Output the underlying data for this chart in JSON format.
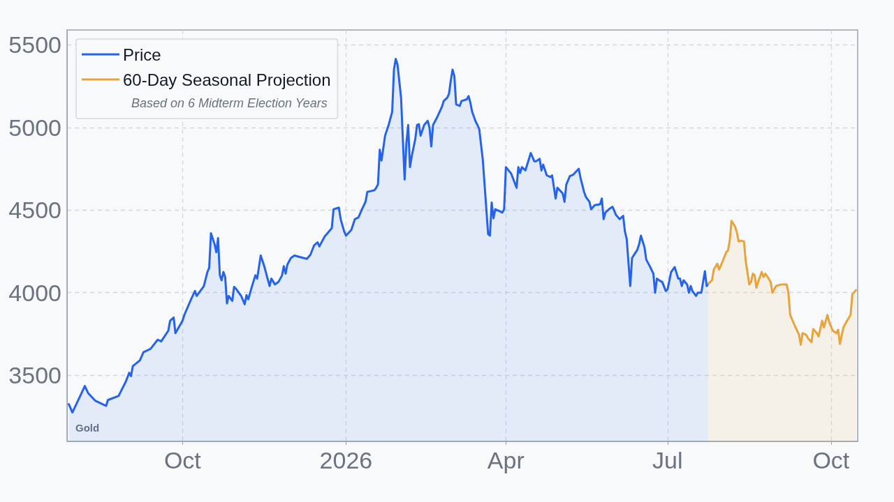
{
  "chart_data": {
    "type": "area",
    "legend": "top left",
    "grid": true,
    "marker": "none",
    "line_style": "solid",
    "xlim": [
      "2025-07-28",
      "2026-10-16"
    ],
    "xticks": [
      {
        "value": "2025-10-01",
        "label": "Oct"
      },
      {
        "value": "2026-01-01",
        "label": "2026"
      },
      {
        "value": "2026-04-01",
        "label": "Apr"
      },
      {
        "value": "2026-07-01",
        "label": "Jul"
      },
      {
        "value": "2026-10-01",
        "label": "Oct"
      }
    ],
    "ylim": [
      3100,
      5590
    ],
    "yticks": [
      3500,
      4000,
      4500,
      5000,
      5500
    ],
    "annotations": [
      "Based on 6 Midterm Election Years",
      "Gold"
    ],
    "series": [
      {
        "name": "Price",
        "color": "#2563eb",
        "x": [
          "2025-07-29",
          "2025-07-31",
          "2025-08-04",
          "2025-08-07",
          "2025-08-09",
          "2025-08-13",
          "2025-08-19",
          "2025-08-20",
          "2025-08-26",
          "2025-08-30",
          "2025-09-01",
          "2025-09-02",
          "2025-09-03",
          "2025-09-07",
          "2025-09-09",
          "2025-09-13",
          "2025-09-17",
          "2025-09-19",
          "2025-09-23",
          "2025-09-24",
          "2025-09-26",
          "2025-09-27",
          "2025-10-01",
          "2025-10-02",
          "2025-10-06",
          "2025-10-08",
          "2025-10-09",
          "2025-10-13",
          "2025-10-15",
          "2025-10-16",
          "2025-10-17",
          "2025-10-19",
          "2025-10-20",
          "2025-10-21",
          "2025-10-22",
          "2025-10-23",
          "2025-10-24",
          "2025-10-25",
          "2025-10-26",
          "2025-10-27",
          "2025-10-29",
          "2025-10-30",
          "2025-10-31",
          "2025-11-03",
          "2025-11-05",
          "2025-11-06",
          "2025-11-07",
          "2025-11-09",
          "2025-11-11",
          "2025-11-12",
          "2025-11-14",
          "2025-11-16",
          "2025-11-19",
          "2025-11-20",
          "2025-11-22",
          "2025-11-24",
          "2025-11-26",
          "2025-11-27",
          "2025-11-28",
          "2025-11-29",
          "2025-12-01",
          "2025-12-03",
          "2025-12-08",
          "2025-12-10",
          "2025-12-12",
          "2025-12-14",
          "2025-12-16",
          "2025-12-17",
          "2025-12-20",
          "2025-12-22",
          "2025-12-24",
          "2025-12-25",
          "2025-12-28",
          "2025-12-29",
          "2025-12-31",
          "2026-01-01",
          "2026-01-04",
          "2026-01-06",
          "2026-01-08",
          "2026-01-10",
          "2026-01-12",
          "2026-01-13",
          "2026-01-17",
          "2026-01-18",
          "2026-01-19",
          "2026-01-20",
          "2026-01-21",
          "2026-01-23",
          "2026-01-25",
          "2026-01-27",
          "2026-01-28",
          "2026-01-29",
          "2026-01-30",
          "2026-02-01",
          "2026-02-02",
          "2026-02-03",
          "2026-02-04",
          "2026-02-05",
          "2026-02-06",
          "2026-02-07",
          "2026-02-09",
          "2026-02-10",
          "2026-02-11",
          "2026-02-12",
          "2026-02-14",
          "2026-02-16",
          "2026-02-17",
          "2026-02-18",
          "2026-02-19",
          "2026-02-21",
          "2026-02-24",
          "2026-02-25",
          "2026-02-27",
          "2026-02-28",
          "2026-03-01",
          "2026-03-02",
          "2026-03-03",
          "2026-03-04",
          "2026-03-06",
          "2026-03-07",
          "2026-03-10",
          "2026-03-11",
          "2026-03-12",
          "2026-03-13",
          "2026-03-15",
          "2026-03-16",
          "2026-03-17",
          "2026-03-19",
          "2026-03-21",
          "2026-03-22",
          "2026-03-23",
          "2026-03-24",
          "2026-03-25",
          "2026-03-26",
          "2026-03-28",
          "2026-03-30",
          "2026-03-31",
          "2026-04-01",
          "2026-04-04",
          "2026-04-07",
          "2026-04-08",
          "2026-04-09",
          "2026-04-10",
          "2026-04-12",
          "2026-04-15",
          "2026-04-17",
          "2026-04-18",
          "2026-04-20",
          "2026-04-21",
          "2026-04-22",
          "2026-04-24",
          "2026-04-26",
          "2026-04-27",
          "2026-04-28",
          "2026-04-29",
          "2026-04-30",
          "2026-05-03",
          "2026-05-04",
          "2026-05-05",
          "2026-05-07",
          "2026-05-09",
          "2026-05-12",
          "2026-05-13",
          "2026-05-15",
          "2026-05-16",
          "2026-05-18",
          "2026-05-19",
          "2026-05-21",
          "2026-05-24",
          "2026-05-25",
          "2026-05-26",
          "2026-05-27",
          "2026-05-29",
          "2026-05-31",
          "2026-06-02",
          "2026-06-04",
          "2026-06-06",
          "2026-06-07",
          "2026-06-08",
          "2026-06-10",
          "2026-06-11",
          "2026-06-14",
          "2026-06-15",
          "2026-06-16",
          "2026-06-18",
          "2026-06-19",
          "2026-06-21",
          "2026-06-23",
          "2026-06-24",
          "2026-06-25",
          "2026-06-27",
          "2026-06-28",
          "2026-06-30",
          "2026-07-01",
          "2026-07-03",
          "2026-07-05",
          "2026-07-07",
          "2026-07-08",
          "2026-07-09",
          "2026-07-10",
          "2026-07-12",
          "2026-07-13",
          "2026-07-14",
          "2026-07-15",
          "2026-07-17",
          "2026-07-18",
          "2026-07-20",
          "2026-07-22",
          "2026-07-23",
          "2026-07-24"
        ],
        "values": [
          3325,
          3275,
          3365,
          3435,
          3390,
          3345,
          3315,
          3350,
          3375,
          3460,
          3515,
          3495,
          3555,
          3590,
          3640,
          3660,
          3715,
          3705,
          3770,
          3830,
          3850,
          3755,
          3830,
          3865,
          3965,
          4010,
          3980,
          4040,
          4125,
          4150,
          4360,
          4295,
          4245,
          4330,
          4105,
          4075,
          4125,
          4095,
          3935,
          3980,
          3950,
          4035,
          4025,
          3980,
          3930,
          3985,
          3960,
          4035,
          4105,
          4085,
          4225,
          4160,
          4040,
          4085,
          4050,
          4065,
          4105,
          4160,
          4115,
          4170,
          4210,
          4225,
          4210,
          4205,
          4230,
          4285,
          4305,
          4280,
          4340,
          4365,
          4390,
          4505,
          4515,
          4445,
          4370,
          4345,
          4380,
          4445,
          4455,
          4505,
          4550,
          4610,
          4620,
          4635,
          4655,
          4865,
          4800,
          4950,
          5015,
          5095,
          5350,
          5415,
          5380,
          5180,
          4930,
          4685,
          4905,
          5015,
          4760,
          4825,
          4930,
          5015,
          5020,
          4950,
          5015,
          5040,
          5000,
          4885,
          5015,
          5055,
          5125,
          5160,
          5180,
          5205,
          5285,
          5350,
          5310,
          5140,
          5130,
          5160,
          5170,
          5190,
          5150,
          5095,
          5035,
          5015,
          4990,
          4805,
          4505,
          4355,
          4345,
          4545,
          4450,
          4505,
          4495,
          4485,
          4505,
          4760,
          4720,
          4635,
          4760,
          4725,
          4760,
          4740,
          4845,
          4795,
          4795,
          4810,
          4740,
          4775,
          4710,
          4700,
          4710,
          4640,
          4570,
          4635,
          4600,
          4550,
          4655,
          4705,
          4715,
          4750,
          4695,
          4610,
          4580,
          4550,
          4505,
          4530,
          4535,
          4570,
          4445,
          4485,
          4505,
          4520,
          4470,
          4445,
          4465,
          4370,
          4325,
          4040,
          4210,
          4260,
          4295,
          4345,
          4275,
          4200,
          4160,
          4115,
          4000,
          4085,
          4070,
          4065,
          4010,
          4020,
          4125,
          4155,
          4085,
          4085,
          4040,
          4075,
          4050,
          4000,
          4040,
          4010,
          3980,
          4000,
          4000,
          4130,
          4040,
          4055
        ]
      },
      {
        "name": "60-Day Seasonal Projection",
        "color": "#e8a33a",
        "x": [
          "2026-07-24",
          "2026-07-26",
          "2026-07-27",
          "2026-07-29",
          "2026-07-30",
          "2026-08-01",
          "2026-08-03",
          "2026-08-04",
          "2026-08-05",
          "2026-08-06",
          "2026-08-08",
          "2026-08-09",
          "2026-08-10",
          "2026-08-11",
          "2026-08-13",
          "2026-08-14",
          "2026-08-16",
          "2026-08-17",
          "2026-08-18",
          "2026-08-19",
          "2026-08-20",
          "2026-08-21",
          "2026-08-23",
          "2026-08-24",
          "2026-08-25",
          "2026-08-26",
          "2026-08-28",
          "2026-08-29",
          "2026-08-31",
          "2026-09-03",
          "2026-09-06",
          "2026-09-07",
          "2026-09-08",
          "2026-09-11",
          "2026-09-13",
          "2026-09-14",
          "2026-09-15",
          "2026-09-17",
          "2026-09-18",
          "2026-09-20",
          "2026-09-21",
          "2026-09-23",
          "2026-09-24",
          "2026-09-26",
          "2026-09-27",
          "2026-09-29",
          "2026-09-30",
          "2026-10-02",
          "2026-10-04",
          "2026-10-05",
          "2026-10-06",
          "2026-10-08",
          "2026-10-10",
          "2026-10-12",
          "2026-10-13",
          "2026-10-15"
        ],
        "values": [
          4055,
          4075,
          4140,
          4175,
          4140,
          4190,
          4245,
          4255,
          4315,
          4435,
          4400,
          4365,
          4310,
          4315,
          4310,
          4190,
          4050,
          4065,
          4115,
          4105,
          4030,
          4065,
          4125,
          4095,
          4115,
          4100,
          4065,
          4000,
          4040,
          4050,
          4050,
          4000,
          3865,
          3790,
          3745,
          3685,
          3755,
          3745,
          3725,
          3700,
          3780,
          3755,
          3735,
          3830,
          3790,
          3865,
          3820,
          3770,
          3755,
          3775,
          3690,
          3790,
          3830,
          3865,
          3990,
          4015
        ]
      }
    ]
  }
}
